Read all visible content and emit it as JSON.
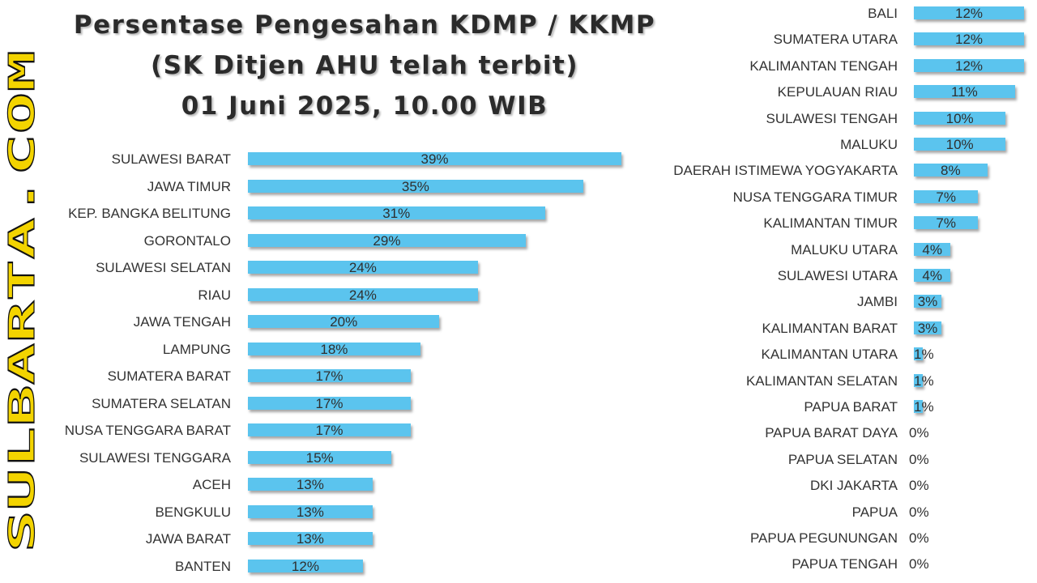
{
  "watermark": "SULBARTA.COM",
  "title": {
    "line1": "Persentase Pengesahan KDMP / KKMP",
    "line2": "(SK Ditjen AHU telah terbit)",
    "line3": "01 Juni 2025, 10.00 WIB"
  },
  "colors": {
    "bar": "#5bc4ee",
    "watermark": "#f3d400",
    "title": "#2b2b2b"
  },
  "chart_data": [
    {
      "type": "bar",
      "orientation": "horizontal",
      "title": "Persentase Pengesahan KDMP / KKMP",
      "categories": [
        "SULAWESI BARAT",
        "JAWA TIMUR",
        "KEP. BANGKA BELITUNG",
        "GORONTALO",
        "SULAWESI SELATAN",
        "RIAU",
        "JAWA TENGAH",
        "LAMPUNG",
        "SUMATERA BARAT",
        "SUMATERA SELATAN",
        "NUSA TENGGARA BARAT",
        "SULAWESI TENGGARA",
        "ACEH",
        "BENGKULU",
        "JAWA BARAT",
        "BANTEN"
      ],
      "values": [
        39,
        35,
        31,
        29,
        24,
        24,
        20,
        18,
        17,
        17,
        17,
        15,
        13,
        13,
        13,
        12
      ],
      "value_labels": [
        "39%",
        "35%",
        "31%",
        "29%",
        "24%",
        "24%",
        "20%",
        "18%",
        "17%",
        "17%",
        "17%",
        "15%",
        "13%",
        "13%",
        "13%",
        "12%"
      ],
      "unit": "%",
      "xlim": [
        0,
        39.5
      ],
      "grid": false
    },
    {
      "type": "bar",
      "orientation": "horizontal",
      "categories": [
        "BALI",
        "SUMATERA UTARA",
        "KALIMANTAN TENGAH",
        "KEPULAUAN RIAU",
        "SULAWESI TENGAH",
        "MALUKU",
        "DAERAH ISTIMEWA YOGYAKARTA",
        "NUSA TENGGARA TIMUR",
        "KALIMANTAN TIMUR",
        "MALUKU UTARA",
        "SULAWESI UTARA",
        "JAMBI",
        "KALIMANTAN BARAT",
        "KALIMANTAN UTARA",
        "KALIMANTAN SELATAN",
        "PAPUA BARAT",
        "PAPUA BARAT DAYA",
        "PAPUA SELATAN",
        "DKI JAKARTA",
        "PAPUA",
        "PAPUA PEGUNUNGAN",
        "PAPUA TENGAH"
      ],
      "values": [
        12,
        12,
        12,
        11,
        10,
        10,
        8,
        7,
        7,
        4,
        4,
        3,
        3,
        1,
        1,
        1,
        0,
        0,
        0,
        0,
        0,
        0
      ],
      "value_labels": [
        "12%",
        "12%",
        "12%",
        "11%",
        "10%",
        "10%",
        "8%",
        "7%",
        "7%",
        "4%",
        "4%",
        "3%",
        "3%",
        "1%",
        "1%",
        "1%",
        "0%",
        "0%",
        "0%",
        "0%",
        "0%",
        "0%"
      ],
      "unit": "%",
      "xlim": [
        0,
        12
      ],
      "grid": false
    }
  ]
}
